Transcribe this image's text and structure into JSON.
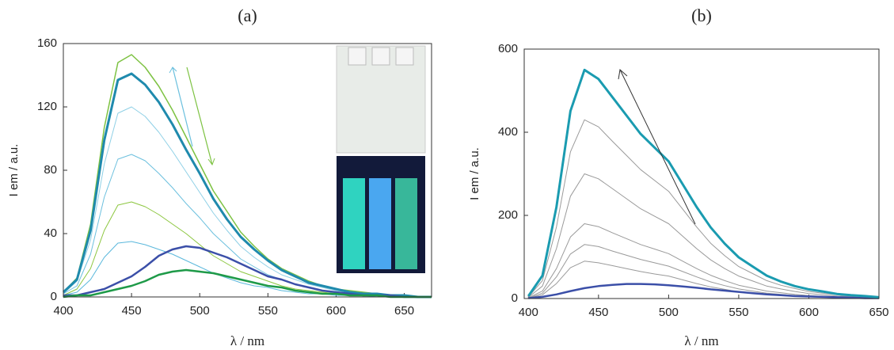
{
  "chart_data": [
    {
      "type": "line",
      "title": "(a)",
      "xlabel": "λ / nm",
      "ylabel": "I em / a.u.",
      "xlim": [
        400,
        670
      ],
      "xticks": [
        400,
        450,
        500,
        550,
        600,
        650
      ],
      "ylim": [
        0,
        160
      ],
      "yticks": [
        0,
        40,
        80,
        120,
        160
      ],
      "x": [
        400,
        410,
        420,
        430,
        440,
        450,
        460,
        470,
        480,
        490,
        500,
        510,
        520,
        530,
        540,
        550,
        560,
        570,
        580,
        590,
        600,
        610,
        620,
        630,
        640,
        650,
        660,
        670
      ],
      "series": [
        {
          "color": "#7dc242",
          "linewidth": 1.5,
          "values": [
            3,
            12,
            46,
            107,
            148,
            153,
            145,
            133,
            118,
            101,
            84,
            67,
            54,
            41,
            32,
            24,
            18,
            14,
            10,
            7,
            5,
            4,
            3,
            2,
            1,
            1,
            0,
            0
          ]
        },
        {
          "color": "#8fd0e6",
          "linewidth": 1,
          "values": [
            2,
            10,
            36,
            84,
            116,
            120,
            114,
            104,
            92,
            79,
            66,
            53,
            42,
            32,
            25,
            19,
            14,
            11,
            8,
            6,
            4,
            3,
            2,
            1,
            1,
            1,
            0,
            0
          ]
        },
        {
          "color": "#6cc0de",
          "linewidth": 1,
          "values": [
            2,
            7,
            27,
            63,
            87,
            90,
            86,
            78,
            69,
            59,
            50,
            40,
            32,
            24,
            19,
            14,
            11,
            8,
            6,
            4,
            3,
            2,
            2,
            1,
            1,
            0,
            0,
            0
          ]
        },
        {
          "color": "#8cc63f",
          "linewidth": 1,
          "values": [
            1,
            5,
            18,
            42,
            58,
            60,
            57,
            52,
            46,
            40,
            33,
            26,
            21,
            16,
            13,
            10,
            7,
            5,
            4,
            3,
            2,
            1,
            1,
            1,
            0,
            0,
            0,
            0
          ]
        },
        {
          "color": "#5bb8dc",
          "linewidth": 1,
          "values": [
            1,
            3,
            11,
            25,
            34,
            35,
            33,
            30,
            27,
            23,
            19,
            15,
            12,
            9,
            7,
            6,
            4,
            3,
            2,
            2,
            1,
            1,
            1,
            0,
            0,
            0,
            0,
            0
          ]
        },
        {
          "color": "#1f8aad",
          "linewidth": 3,
          "values": [
            3,
            11,
            42,
            99,
            137,
            141,
            134,
            123,
            109,
            93,
            78,
            62,
            49,
            38,
            30,
            23,
            17,
            13,
            9,
            7,
            5,
            3,
            2,
            2,
            1,
            1,
            0,
            0
          ]
        },
        {
          "color": "#3b4fa8",
          "linewidth": 2.5,
          "values": [
            1,
            1,
            3,
            5,
            9,
            13,
            19,
            26,
            30,
            32,
            31,
            28,
            25,
            21,
            17,
            13,
            11,
            8,
            6,
            4,
            3,
            2,
            1,
            1,
            1,
            0,
            0,
            0
          ]
        },
        {
          "color": "#1e9a48",
          "linewidth": 2.5,
          "values": [
            0,
            1,
            1,
            3,
            5,
            7,
            10,
            14,
            16,
            17,
            16,
            15,
            13,
            11,
            9,
            7,
            6,
            4,
            3,
            2,
            2,
            1,
            1,
            1,
            0,
            0,
            0,
            0
          ]
        }
      ]
    },
    {
      "type": "line",
      "title": "(b)",
      "xlabel": "λ / nm",
      "ylabel": "I em / a.u.",
      "xlim": [
        397,
        650
      ],
      "xticks": [
        400,
        450,
        500,
        550,
        600,
        650
      ],
      "ylim": [
        0,
        600
      ],
      "yticks": [
        0,
        200,
        400,
        600
      ],
      "x": [
        400,
        410,
        420,
        430,
        440,
        450,
        460,
        470,
        480,
        490,
        500,
        510,
        520,
        530,
        540,
        550,
        560,
        570,
        580,
        590,
        600,
        610,
        620,
        630,
        640,
        650
      ],
      "series": [
        {
          "color": "#9a9a9a",
          "linewidth": 1,
          "values": [
            4,
            43,
            172,
            353,
            430,
            413,
            378,
            344,
            310,
            284,
            258,
            215,
            172,
            133,
            103,
            77,
            60,
            43,
            32,
            24,
            17,
            13,
            9,
            6,
            4,
            3
          ]
        },
        {
          "color": "#9a9a9a",
          "linewidth": 1,
          "values": [
            3,
            30,
            120,
            246,
            300,
            288,
            264,
            240,
            216,
            198,
            180,
            150,
            120,
            93,
            72,
            54,
            42,
            30,
            23,
            17,
            12,
            9,
            6,
            5,
            3,
            2
          ]
        },
        {
          "color": "#9a9a9a",
          "linewidth": 1,
          "values": [
            2,
            18,
            72,
            148,
            180,
            173,
            158,
            144,
            130,
            119,
            108,
            90,
            72,
            56,
            43,
            32,
            25,
            18,
            14,
            10,
            7,
            5,
            4,
            3,
            2,
            1
          ]
        },
        {
          "color": "#9a9a9a",
          "linewidth": 1,
          "values": [
            1,
            13,
            52,
            107,
            130,
            125,
            114,
            104,
            94,
            86,
            78,
            65,
            52,
            40,
            31,
            23,
            18,
            13,
            10,
            7,
            5,
            4,
            3,
            2,
            1,
            1
          ]
        },
        {
          "color": "#9a9a9a",
          "linewidth": 1,
          "values": [
            1,
            9,
            36,
            74,
            90,
            86,
            79,
            72,
            65,
            59,
            54,
            45,
            36,
            28,
            22,
            16,
            13,
            9,
            7,
            5,
            4,
            3,
            2,
            1,
            1,
            1
          ]
        },
        {
          "color": "#3b4fa8",
          "linewidth": 2.5,
          "values": [
            1,
            4,
            10,
            18,
            25,
            30,
            33,
            35,
            35,
            34,
            32,
            29,
            26,
            22,
            19,
            16,
            13,
            10,
            8,
            6,
            5,
            4,
            3,
            2,
            1,
            1
          ]
        },
        {
          "color": "#1a9bb0",
          "linewidth": 3,
          "values": [
            6,
            55,
            220,
            451,
            550,
            528,
            484,
            440,
            396,
            363,
            330,
            275,
            220,
            171,
            132,
            99,
            77,
            55,
            41,
            30,
            22,
            17,
            11,
            8,
            6,
            3
          ]
        }
      ]
    }
  ]
}
